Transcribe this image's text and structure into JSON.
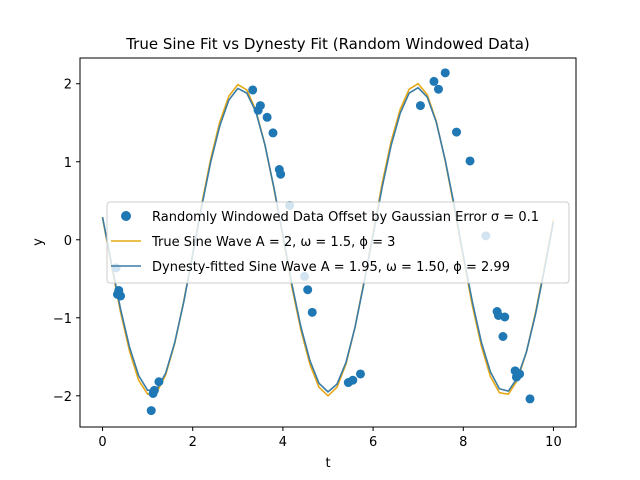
{
  "chart_data": {
    "type": "line",
    "title": "True Sine Fit vs Dynesty Fit (Random Windowed Data)",
    "xlabel": "t",
    "ylabel": "y",
    "xlim": [
      -0.5,
      10.5
    ],
    "ylim": [
      -2.4,
      2.33
    ],
    "xticks": [
      0,
      2,
      4,
      6,
      8,
      10
    ],
    "yticks": [
      -2,
      -1,
      0,
      1,
      2
    ],
    "grid": false,
    "legend_position": "center",
    "legend": [
      "Randomly Windowed Data Offset by Gaussian Error σ = 0.1",
      "True Sine Wave A = 2, ω = 1.5, ϕ = 3",
      "Dynesty-fitted Sine Wave A = 1.95, ω = 1.50, ϕ = 2.99"
    ],
    "series": [
      {
        "name": "Randomly Windowed Data Offset by Gaussian Error σ = 0.1",
        "kind": "scatter",
        "color": "#1f77b4",
        "x": [
          0.3,
          0.33,
          0.36,
          0.4,
          1.08,
          1.12,
          1.15,
          1.25,
          3.33,
          3.45,
          3.5,
          3.65,
          3.78,
          3.92,
          3.95,
          4.15,
          4.48,
          4.55,
          4.65,
          5.45,
          5.55,
          5.72,
          7.05,
          7.35,
          7.45,
          7.6,
          7.85,
          8.15,
          8.5,
          8.75,
          8.78,
          8.88,
          8.92,
          9.15,
          9.18,
          9.25,
          9.48
        ],
        "y": [
          -0.36,
          -0.7,
          -0.65,
          -0.72,
          -2.19,
          -1.97,
          -1.93,
          -1.82,
          1.92,
          1.66,
          1.72,
          1.57,
          1.37,
          0.9,
          0.84,
          0.44,
          -0.47,
          -0.64,
          -0.93,
          -1.83,
          -1.8,
          -1.72,
          1.72,
          2.03,
          1.93,
          2.14,
          1.38,
          1.01,
          0.05,
          -0.92,
          -0.97,
          -1.24,
          -0.99,
          -1.68,
          -1.76,
          -1.72,
          -2.04
        ]
      },
      {
        "name": "True Sine Wave A = 2, ω = 1.5, ϕ = 3",
        "kind": "line",
        "color": "#e6a817",
        "function": "2*sin(1.5*t+3)",
        "x": [
          0.0,
          0.2,
          0.4,
          0.6,
          0.8,
          1.0,
          1.2,
          1.4,
          1.6,
          1.8,
          2.0,
          2.2,
          2.4,
          2.6,
          2.8,
          3.0,
          3.2,
          3.4,
          3.6,
          3.8,
          4.0,
          4.2,
          4.4,
          4.6,
          4.8,
          5.0,
          5.2,
          5.4,
          5.6,
          5.8,
          6.0,
          6.2,
          6.4,
          6.6,
          6.8,
          7.0,
          7.2,
          7.4,
          7.6,
          7.8,
          8.0,
          8.2,
          8.4,
          8.6,
          8.8,
          9.0,
          9.2,
          9.4,
          9.6,
          9.8,
          10.0
        ],
        "y": [
          0.28,
          -0.34,
          -0.93,
          -1.43,
          -1.8,
          -1.98,
          -1.96,
          -1.73,
          -1.33,
          -0.79,
          -0.17,
          0.46,
          1.04,
          1.51,
          1.84,
          1.99,
          1.92,
          1.66,
          1.22,
          0.66,
          0.03,
          -0.61,
          -1.16,
          -1.6,
          -1.89,
          -2.0,
          -1.89,
          -1.59,
          -1.12,
          -0.53,
          0.09,
          0.72,
          1.26,
          1.67,
          1.93,
          2.0,
          1.86,
          1.52,
          1.01,
          0.41,
          -0.23,
          -0.84,
          -1.36,
          -1.75,
          -1.96,
          -1.98,
          -1.8,
          -1.44,
          -0.94,
          -0.35,
          0.26
        ]
      },
      {
        "name": "Dynesty-fitted Sine Wave A = 1.95, ω = 1.50, ϕ = 2.99",
        "kind": "line",
        "color": "#3a7ca5",
        "function": "1.95*sin(1.5*t+2.99)",
        "x": [
          0.0,
          0.2,
          0.4,
          0.6,
          0.8,
          1.0,
          1.2,
          1.4,
          1.6,
          1.8,
          2.0,
          2.2,
          2.4,
          2.6,
          2.8,
          3.0,
          3.2,
          3.4,
          3.6,
          3.8,
          4.0,
          4.2,
          4.4,
          4.6,
          4.8,
          5.0,
          5.2,
          5.4,
          5.6,
          5.8,
          6.0,
          6.2,
          6.4,
          6.6,
          6.8,
          7.0,
          7.2,
          7.4,
          7.6,
          7.8,
          8.0,
          8.2,
          8.4,
          8.6,
          8.8,
          9.0,
          9.2,
          9.4,
          9.6,
          9.8,
          10.0
        ],
        "y": [
          0.29,
          -0.31,
          -0.89,
          -1.38,
          -1.74,
          -1.93,
          -1.92,
          -1.71,
          -1.32,
          -0.8,
          -0.19,
          0.43,
          1.0,
          1.46,
          1.79,
          1.94,
          1.88,
          1.64,
          1.22,
          0.67,
          0.06,
          -0.57,
          -1.12,
          -1.55,
          -1.84,
          -1.95,
          -1.85,
          -1.57,
          -1.12,
          -0.55,
          0.06,
          0.67,
          1.21,
          1.62,
          1.88,
          1.95,
          1.83,
          1.51,
          1.02,
          0.44,
          -0.2,
          -0.79,
          -1.31,
          -1.69,
          -1.91,
          -1.94,
          -1.77,
          -1.44,
          -0.96,
          -0.38,
          0.23
        ]
      }
    ]
  }
}
